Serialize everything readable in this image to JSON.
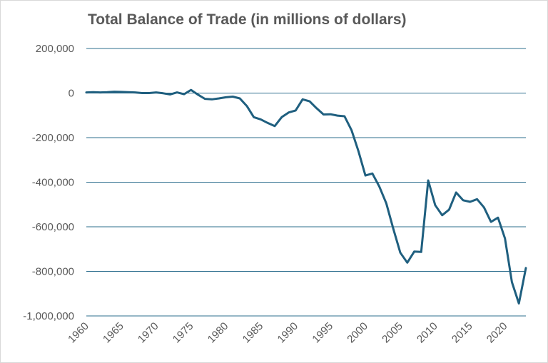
{
  "chart_data": {
    "type": "line",
    "title": "Total Balance of Trade (in millions of dollars)",
    "xlabel": "",
    "ylabel": "",
    "ylim": [
      -1000000,
      200000
    ],
    "yticks": [
      200000,
      0,
      -200000,
      -400000,
      -600000,
      -800000,
      -1000000
    ],
    "ytick_labels": [
      "200,000",
      "0",
      "-200,000",
      "-400,000",
      "-600,000",
      "-800,000",
      "-1,000,000"
    ],
    "xlim": [
      1960,
      2023
    ],
    "xticks": [
      1960,
      1965,
      1970,
      1975,
      1980,
      1985,
      1990,
      1995,
      2000,
      2005,
      2010,
      2015,
      2020
    ],
    "xtick_labels": [
      "1960",
      "1965",
      "1970",
      "1975",
      "1980",
      "1985",
      "1990",
      "1995",
      "2000",
      "2005",
      "2010",
      "2015",
      "2020"
    ],
    "grid": true,
    "legend": "none",
    "color": "#1f5f7f",
    "grid_color": "#2e6f8e",
    "series": [
      {
        "x": [
          1960,
          1961,
          1962,
          1963,
          1964,
          1965,
          1966,
          1967,
          1968,
          1969,
          1970,
          1971,
          1972,
          1973,
          1974,
          1975,
          1976,
          1977,
          1978,
          1979,
          1980,
          1981,
          1982,
          1983,
          1984,
          1985,
          1986,
          1987,
          1988,
          1989,
          1990,
          1991,
          1992,
          1993,
          1994,
          1995,
          1996,
          1997,
          1998,
          1999,
          2000,
          2001,
          2002,
          2003,
          2004,
          2005,
          2006,
          2007,
          2008,
          2009,
          2010,
          2011,
          2012,
          2013,
          2014,
          2015,
          2016,
          2017,
          2018,
          2019,
          2020,
          2021,
          2022,
          2023
        ],
        "values": [
          3000,
          4000,
          3000,
          4000,
          6000,
          5000,
          4000,
          3000,
          0,
          0,
          3000,
          -1000,
          -6000,
          3000,
          -5000,
          14000,
          -7000,
          -26000,
          -28000,
          -24000,
          -19000,
          -16000,
          -24000,
          -58000,
          -108000,
          -118000,
          -134000,
          -148000,
          -108000,
          -87000,
          -78000,
          -28000,
          -37000,
          -68000,
          -96000,
          -95000,
          -101000,
          -104000,
          -166000,
          -260000,
          -370000,
          -361000,
          -420000,
          -495000,
          -609000,
          -716000,
          -761000,
          -711000,
          -713000,
          -392000,
          -503000,
          -548000,
          -523000,
          -446000,
          -481000,
          -488000,
          -476000,
          -513000,
          -578000,
          -559000,
          -652000,
          -848000,
          -944000,
          -785000
        ]
      }
    ]
  }
}
